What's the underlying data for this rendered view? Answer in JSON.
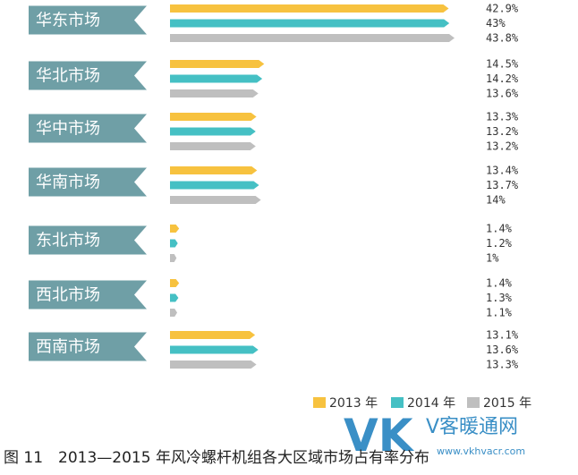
{
  "chart_data": {
    "type": "bar",
    "orientation": "horizontal",
    "categories": [
      "华东市场",
      "华北市场",
      "华中市场",
      "华南市场",
      "东北市场",
      "西北市场",
      "西南市场"
    ],
    "series": [
      {
        "name": "2013 年",
        "values": [
          42.9,
          14.5,
          13.3,
          13.4,
          1.4,
          1.4,
          13.1
        ],
        "labels": [
          "42.9%",
          "14.5%",
          "13.3%",
          "13.4%",
          "1.4%",
          "1.4%",
          "13.1%"
        ]
      },
      {
        "name": "2014 年",
        "values": [
          43,
          14.2,
          13.2,
          13.7,
          1.2,
          1.3,
          13.6
        ],
        "labels": [
          "43%",
          "14.2%",
          "13.2%",
          "13.7%",
          "1.2%",
          "1.3%",
          "13.6%"
        ]
      },
      {
        "name": "2015 年",
        "values": [
          43.8,
          13.6,
          13.2,
          14,
          1,
          1.1,
          13.3
        ],
        "labels": [
          "43.8%",
          "13.6%",
          "13.2%",
          "14%",
          "1%",
          "1.1%",
          "13.3%"
        ]
      }
    ],
    "colors": [
      "#f7c23f",
      "#45c0c4",
      "#bfbfbf"
    ],
    "label_color": "#6f9fa6",
    "xlim": [
      0,
      43.8
    ],
    "grid": false,
    "legend": "bottom-right",
    "title": "",
    "xlabel": "",
    "ylabel": ""
  },
  "caption": "图 11　2013—2015 年风冷螺杆机组各大区域市场占有率分布",
  "watermark": {
    "brand": "VK",
    "side_text": "V客暖通网",
    "url": "www.vkhvacr.com"
  }
}
